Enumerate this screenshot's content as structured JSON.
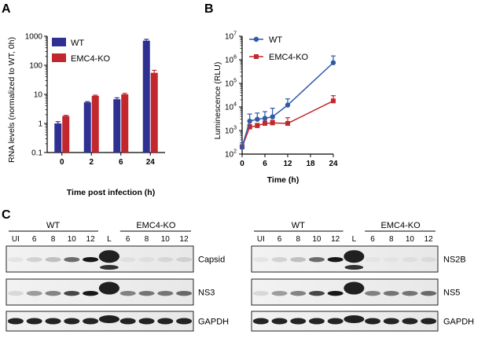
{
  "panels": {
    "a": "A",
    "b": "B",
    "c": "C"
  },
  "chart_data": [
    {
      "type": "bar",
      "categories": [
        "0",
        "2",
        "6",
        "24"
      ],
      "series": [
        {
          "name": "WT",
          "values": [
            1.0,
            5.3,
            6.8,
            700
          ],
          "errors": [
            0.15,
            0.3,
            0.8,
            80
          ],
          "color": "#2e3192"
        },
        {
          "name": "EMC4-KO",
          "values": [
            1.8,
            8.9,
            10.0,
            55
          ],
          "errors": [
            0.1,
            0.5,
            0.8,
            12
          ],
          "color": "#c1272d"
        }
      ],
      "xlabel": "Time post infection (h)",
      "ylabel": "RNA levels (normalized to WT, 0h)",
      "yscale": "log",
      "ylim": [
        0.1,
        1000
      ],
      "yticks": [
        "0.1",
        "1",
        "10",
        "100",
        "1000"
      ],
      "legend": "top-left"
    },
    {
      "type": "line",
      "x": [
        0,
        2,
        4,
        6,
        8,
        12,
        24
      ],
      "series": [
        {
          "name": "WT",
          "values": [
            200,
            2500,
            3000,
            3300,
            3800,
            12000,
            750000
          ],
          "errors": [
            100,
            2500,
            2500,
            3000,
            5000,
            10000,
            700000
          ],
          "color": "#2e5aa8",
          "marker": "circle"
        },
        {
          "name": "EMC4-KO",
          "values": [
            200,
            1400,
            1600,
            2000,
            2100,
            2000,
            18000
          ],
          "errors": [
            50,
            400,
            400,
            500,
            600,
            1500,
            12000
          ],
          "color": "#c1272d",
          "marker": "square"
        }
      ],
      "xlabel": "Time (h)",
      "ylabel": "Luminescence (RLU)",
      "yscale": "log",
      "ylim": [
        100,
        10000000
      ],
      "yticks": [
        "2",
        "3",
        "4",
        "5",
        "6",
        "7"
      ],
      "xticks": [
        "0",
        "6",
        "12",
        "18",
        "24"
      ],
      "xlim": [
        0,
        24
      ],
      "legend": "top-left"
    }
  ],
  "blots": {
    "left": {
      "group1": "WT",
      "group2": "EMC4-KO",
      "lanes": [
        "UI",
        "6",
        "8",
        "10",
        "12",
        "L",
        "6",
        "8",
        "10",
        "12"
      ],
      "rows": [
        "Capsid",
        "NS3",
        "GAPDH"
      ]
    },
    "right": {
      "group1": "WT",
      "group2": "EMC4-KO",
      "lanes": [
        "UI",
        "6",
        "8",
        "10",
        "12",
        "L",
        "6",
        "8",
        "10",
        "12"
      ],
      "rows": [
        "NS2B",
        "NS5",
        "GAPDH"
      ]
    }
  }
}
